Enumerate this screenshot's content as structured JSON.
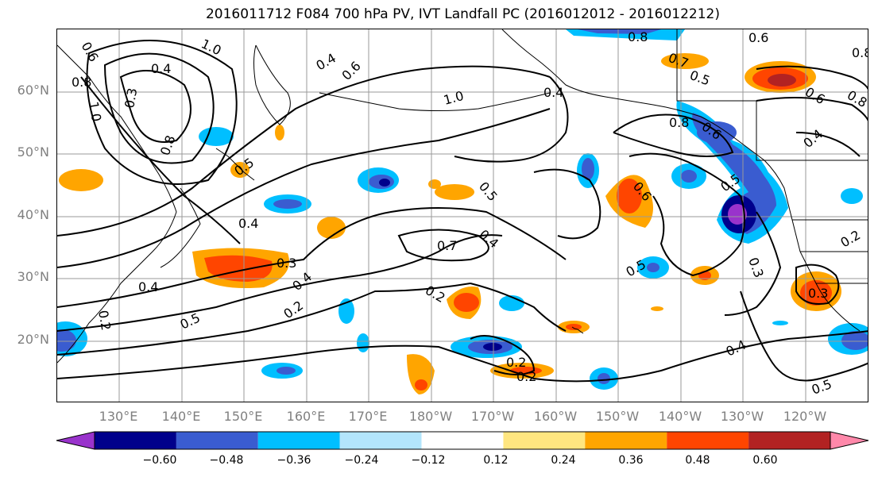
{
  "title": "2016011712 F084 700 hPa PV, IVT Landfall PC (2016012012 - 2016012212)",
  "lat_labels": [
    "60°N",
    "50°N",
    "40°N",
    "30°N",
    "20°N"
  ],
  "lon_labels": [
    "130°E",
    "140°E",
    "150°E",
    "160°E",
    "170°E",
    "180°W",
    "170°W",
    "160°W",
    "150°W",
    "140°W",
    "130°W",
    "120°W"
  ],
  "contour_labels": [
    "0.6",
    "1.0",
    "0.4",
    "0.8",
    "1.0",
    "0.3",
    "0.8",
    "0.4",
    "0.6",
    "1.0",
    "0.4",
    "0.8",
    "0.6",
    "0.8",
    "0.6",
    "0.7",
    "0.5",
    "0.6",
    "0.8",
    "0.8",
    "0.4",
    "0.5",
    "0.5",
    "0.4",
    "0.6",
    "0.5",
    "0.7",
    "0.4",
    "0.3",
    "0.4",
    "0.5",
    "0.4",
    "0.2",
    "0.5",
    "0.2",
    "0.3",
    "0.3",
    "0.2",
    "0.2",
    "0.4",
    "0.5",
    "0.2",
    "0.2",
    "0.3",
    "0.2",
    "0.2",
    "0.3",
    "0.5"
  ],
  "colorbar": {
    "colors": [
      "#9933cc",
      "#00008b",
      "#3a5cd0",
      "#00bfff",
      "#b3e5fc",
      "#ffffff",
      "#ffe680",
      "#ffa500",
      "#ff4500",
      "#b22222",
      "#ff88aa"
    ],
    "ticks": [
      "−0.60",
      "−0.48",
      "−0.36",
      "−0.24",
      "−0.12",
      "0.12",
      "0.24",
      "0.36",
      "0.48",
      "0.60"
    ]
  }
}
